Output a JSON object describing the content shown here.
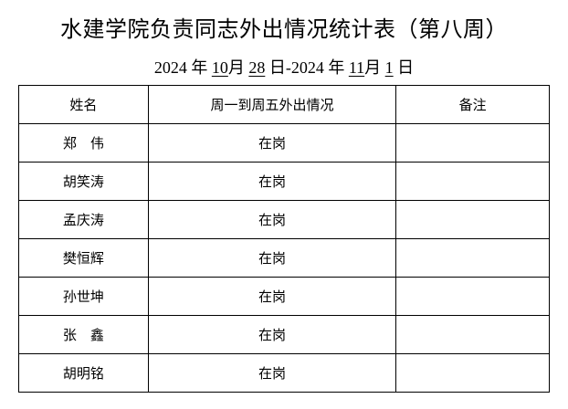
{
  "title": "水建学院负责同志外出情况统计表（第八周）",
  "date": {
    "y1": "2024",
    "m1": "10",
    "d1": "28",
    "y2": "2024",
    "m2": "11",
    "d2": "1",
    "year_char": "年",
    "month_char": "月",
    "day_char": "日",
    "sep": "-"
  },
  "table": {
    "headers": [
      "姓名",
      "周一到周五外出情况",
      "备注"
    ],
    "rows": [
      {
        "name": "郑　伟",
        "status": "在岗",
        "note": ""
      },
      {
        "name": "胡笑涛",
        "status": "在岗",
        "note": ""
      },
      {
        "name": "孟庆涛",
        "status": "在岗",
        "note": ""
      },
      {
        "name": "樊恒辉",
        "status": "在岗",
        "note": ""
      },
      {
        "name": "孙世坤",
        "status": "在岗",
        "note": ""
      },
      {
        "name": "张　鑫",
        "status": "在岗",
        "note": ""
      },
      {
        "name": "胡明铭",
        "status": "在岗",
        "note": ""
      }
    ]
  }
}
